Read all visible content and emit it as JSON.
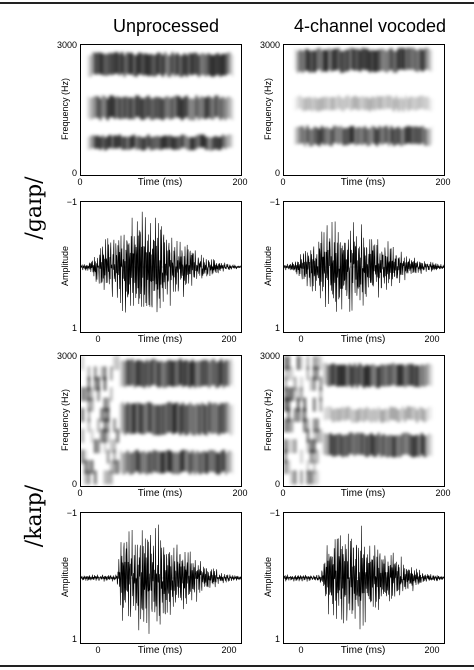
{
  "columns": [
    "Unprocessed",
    "4-channel vocoded"
  ],
  "rows": [
    "/ɡaɪp/",
    "/kaɪp/"
  ],
  "chart_data": [
    {
      "type": "heatmap",
      "variant": "spectrogram",
      "row": "/ɡaɪp/",
      "column": "Unprocessed",
      "xlabel": "Time (ms)",
      "ylabel": "Frequency (Hz)",
      "xlim": [
        0,
        200
      ],
      "ylim": [
        0,
        3000
      ],
      "xticks": [
        "0",
        "200"
      ],
      "yticks": [
        "0",
        "3000"
      ],
      "active_time_ms": [
        5,
        190
      ],
      "bands_hz": [
        [
          600,
          900,
          0.95
        ],
        [
          1300,
          1800,
          0.9
        ],
        [
          2300,
          2800,
          0.95
        ]
      ]
    },
    {
      "type": "line",
      "variant": "waveform",
      "row": "/ɡaɪp/",
      "column": "Unprocessed",
      "xlabel": "Time (ms)",
      "ylabel": "Amplitude",
      "xlim": [
        0,
        200
      ],
      "ylim": [
        -1,
        1
      ],
      "xticks": [
        "0",
        "200"
      ],
      "yticks": [
        "1",
        "−1"
      ],
      "envelope": [
        [
          0,
          0.04
        ],
        [
          10,
          0.08
        ],
        [
          20,
          0.3
        ],
        [
          50,
          0.7
        ],
        [
          70,
          0.95
        ],
        [
          90,
          0.85
        ],
        [
          120,
          0.55
        ],
        [
          150,
          0.25
        ],
        [
          175,
          0.08
        ],
        [
          200,
          0.02
        ]
      ]
    },
    {
      "type": "heatmap",
      "variant": "spectrogram",
      "row": "/ɡaɪp/",
      "column": "4-channel vocoded",
      "xlabel": "Time (ms)",
      "ylabel": "Frequency (Hz)",
      "xlim": [
        0,
        200
      ],
      "ylim": [
        0,
        3000
      ],
      "xticks": [
        "0",
        "200"
      ],
      "yticks": [
        "0",
        "3000"
      ],
      "active_time_ms": [
        10,
        185
      ],
      "bands_hz": [
        [
          700,
          1100,
          0.9
        ],
        [
          2400,
          2900,
          0.95
        ],
        [
          1500,
          1800,
          0.35
        ]
      ]
    },
    {
      "type": "line",
      "variant": "waveform",
      "row": "/ɡaɪp/",
      "column": "4-channel vocoded",
      "xlabel": "Time (ms)",
      "ylabel": "Amplitude",
      "xlim": [
        0,
        200
      ],
      "ylim": [
        -1,
        1
      ],
      "xticks": [
        "0",
        "200"
      ],
      "yticks": [
        "1",
        "−1"
      ],
      "envelope": [
        [
          0,
          0.04
        ],
        [
          15,
          0.1
        ],
        [
          30,
          0.35
        ],
        [
          60,
          0.75
        ],
        [
          80,
          0.8
        ],
        [
          110,
          0.55
        ],
        [
          140,
          0.3
        ],
        [
          170,
          0.12
        ],
        [
          200,
          0.04
        ]
      ]
    },
    {
      "type": "heatmap",
      "variant": "spectrogram",
      "row": "/kaɪp/",
      "column": "Unprocessed",
      "xlabel": "Time (ms)",
      "ylabel": "Frequency (Hz)",
      "xlim": [
        0,
        200
      ],
      "ylim": [
        0,
        3000
      ],
      "xticks": [
        "0",
        "200"
      ],
      "yticks": [
        "0",
        "3000"
      ],
      "active_time_ms": [
        45,
        190
      ],
      "noise_time_ms": [
        0,
        45
      ],
      "bands_hz": [
        [
          300,
          800,
          0.95
        ],
        [
          1200,
          1900,
          0.9
        ],
        [
          2300,
          2900,
          0.95
        ]
      ]
    },
    {
      "type": "line",
      "variant": "waveform",
      "row": "/kaɪp/",
      "column": "Unprocessed",
      "xlabel": "Time (ms)",
      "ylabel": "Amplitude",
      "xlim": [
        0,
        200
      ],
      "ylim": [
        -1,
        1
      ],
      "xticks": [
        "0",
        "200"
      ],
      "yticks": [
        "1",
        "−1"
      ],
      "envelope": [
        [
          0,
          0.05
        ],
        [
          45,
          0.06
        ],
        [
          52,
          0.85
        ],
        [
          70,
          0.95
        ],
        [
          90,
          0.85
        ],
        [
          120,
          0.6
        ],
        [
          150,
          0.3
        ],
        [
          175,
          0.1
        ],
        [
          200,
          0.03
        ]
      ]
    },
    {
      "type": "heatmap",
      "variant": "spectrogram",
      "row": "/kaɪp/",
      "column": "4-channel vocoded",
      "xlabel": "Time (ms)",
      "ylabel": "Frequency (Hz)",
      "xlim": [
        0,
        200
      ],
      "ylim": [
        0,
        3000
      ],
      "xticks": [
        "0",
        "200"
      ],
      "yticks": [
        "0",
        "3000"
      ],
      "active_time_ms": [
        45,
        185
      ],
      "noise_time_ms": [
        0,
        45
      ],
      "bands_hz": [
        [
          700,
          1200,
          0.9
        ],
        [
          2300,
          2800,
          0.95
        ],
        [
          1500,
          1800,
          0.4
        ]
      ]
    },
    {
      "type": "line",
      "variant": "waveform",
      "row": "/kaɪp/",
      "column": "4-channel vocoded",
      "xlabel": "Time (ms)",
      "ylabel": "Amplitude",
      "xlim": [
        0,
        200
      ],
      "ylim": [
        -1,
        1
      ],
      "xticks": [
        "0",
        "200"
      ],
      "yticks": [
        "1",
        "−1"
      ],
      "envelope": [
        [
          0,
          0.05
        ],
        [
          45,
          0.06
        ],
        [
          55,
          0.6
        ],
        [
          70,
          0.9
        ],
        [
          95,
          0.8
        ],
        [
          120,
          0.55
        ],
        [
          150,
          0.3
        ],
        [
          175,
          0.1
        ],
        [
          200,
          0.03
        ]
      ]
    }
  ]
}
